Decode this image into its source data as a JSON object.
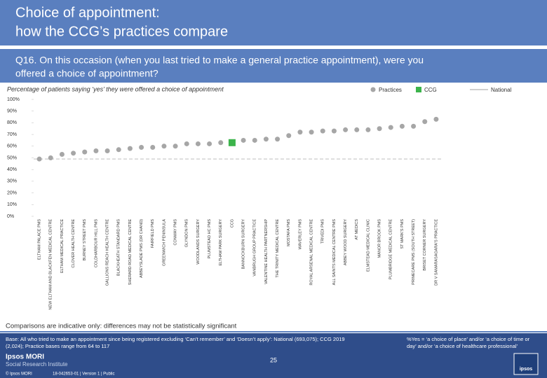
{
  "header": {
    "title": [
      "Choice of appointment:",
      "how the CCG’s practices compare"
    ],
    "question": [
      "Q16. On this occasion (when you last tried to make a general practice appointment), were you",
      "offered a choice of appointment?"
    ]
  },
  "chart_data": {
    "type": "dot",
    "subtitle": "Percentage of patients saying ‘yes’ they were offered a choice of appointment",
    "categories": [
      "ELTHAM PALACE PMS",
      "NEW ELTHAM AND BLACKFEN MEDICAL CENTRE",
      "ELTHAM MEDICAL PRACTICE",
      "CLOVER HEALTH CENTRE",
      "BURNEY STREET PMS",
      "COLDHARBOUR HILL PMS",
      "GALLIONS REACH HEALTH CENTRE",
      "BLACKHEATH STANDARD PMS",
      "SHERARD ROAD MEDICAL CENTRE",
      "ABBEYSLADE PMS (DR CHAND)",
      "FAIRFIELD PMS",
      "GREENWICH PENINSULA",
      "CONWAY PMS",
      "GLYNDON PMS",
      "WOODLANDS SURGERY",
      "PLUMSTEAD HC PMS",
      "ELTHAM PARK SURGERY",
      "CCG",
      "BANNOCKBURN SURGERY",
      "VANBRUGH GROUP PRACTICE",
      "VALENTINE HEALTH PARTNERSHIP",
      "THE TRINITY MEDICAL CENTRE",
      "MOSTAFA PMS",
      "WAVERLEY PMS",
      "ROYAL ARSENAL MEDICAL CENTRE",
      "TRIVEDI PMS",
      "ALL SAINTS MEDICAL CENTRE PMS",
      "ABBEY WOOD SURGERY",
      "AT MEDICS",
      "ELMSTEAD MEDICAL CLINIC",
      "MANOR BROOK PMS",
      "PLUMBRIDGE MEDICAL CENTRE",
      "ST MARK'S PMS",
      "PRIMECARE PMS (SOUTH STREET)",
      "BRISET CORNER SURGERY",
      "DR V SAMARASAGARA'S PRACTICE"
    ],
    "series": [
      {
        "name": "Practices",
        "color": "#a6a6a6",
        "values": [
          49,
          50,
          53,
          54,
          55,
          56,
          56,
          57,
          58,
          59,
          59,
          60,
          60,
          62,
          62,
          62,
          63,
          null,
          65,
          65,
          66,
          66,
          69,
          72,
          72,
          73,
          73,
          74,
          74,
          74,
          75,
          76,
          77,
          77,
          81,
          83
        ]
      },
      {
        "name": "CCG",
        "color": "#3cb44b",
        "values": [
          null,
          null,
          null,
          null,
          null,
          null,
          null,
          null,
          null,
          null,
          null,
          null,
          null,
          null,
          null,
          null,
          null,
          63,
          null,
          null,
          null,
          null,
          null,
          null,
          null,
          null,
          null,
          null,
          null,
          null,
          null,
          null,
          null,
          null,
          null,
          null
        ]
      }
    ],
    "reference": {
      "name": "National",
      "value": 49,
      "color": "#bfbfbf"
    },
    "ylim": [
      0,
      100
    ],
    "yticks": [
      {
        "value": 0,
        "label": "0%"
      },
      {
        "value": 10,
        "label": "10%"
      },
      {
        "value": 20,
        "label": "20%"
      },
      {
        "value": 30,
        "label": "30%"
      },
      {
        "value": 40,
        "label": "40%"
      },
      {
        "value": 50,
        "label": "50%"
      },
      {
        "value": 60,
        "label": "60%"
      },
      {
        "value": 70,
        "label": "70%"
      },
      {
        "value": 80,
        "label": "80%"
      },
      {
        "value": 90,
        "label": "90%"
      },
      {
        "value": 100,
        "label": "100%"
      }
    ]
  },
  "footer": {
    "caveat": "Comparisons are indicative only: differences may not be statistically significant",
    "base": [
      "Base: All who tried to make an appointment since being registered excluding ‘Can’t remember’ and ‘Doesn’t apply’: National (693,075); CCG 2019",
      "(2,024); Practice bases range from 64 to 117"
    ],
    "note": [
      "%Yes = ‘a choice of place’ and/or ‘a choice of time or",
      "day’ and/or ‘a choice of healthcare professional’"
    ],
    "page": "25",
    "brand": "Ipsos MORI",
    "unit": "Social Research Institute",
    "copyright": "© Ipsos MORI",
    "job": "18-042653-01 | Version 1 | Public",
    "logo": "ipsos"
  }
}
